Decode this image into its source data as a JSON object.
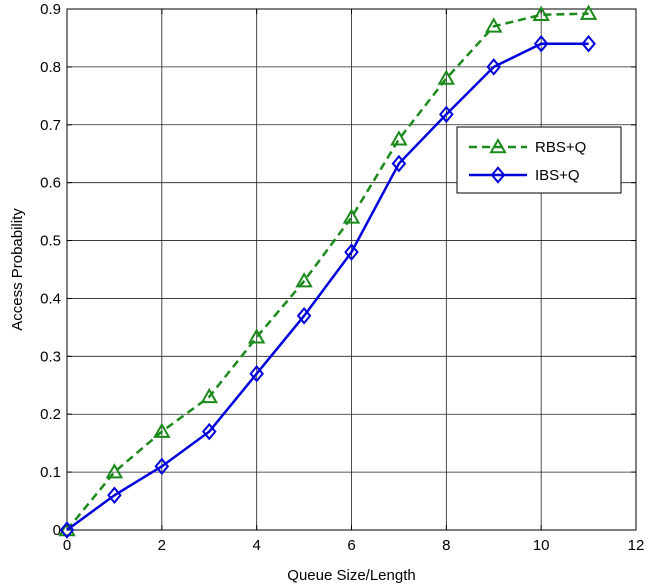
{
  "chart_data": {
    "type": "line",
    "title": "",
    "xlabel": "Queue Size/Length",
    "ylabel": "Access Probability",
    "xlim": [
      0,
      12
    ],
    "ylim": [
      0,
      0.9
    ],
    "xticks": [
      0,
      2,
      4,
      6,
      8,
      10,
      12
    ],
    "yticks": [
      0,
      0.1,
      0.2,
      0.3,
      0.4,
      0.5,
      0.6,
      0.7,
      0.8,
      0.9
    ],
    "xtick_labels": [
      "0",
      "2",
      "4",
      "6",
      "8",
      "10",
      "12"
    ],
    "ytick_labels": [
      "0",
      "0.1",
      "0.2",
      "0.3",
      "0.4",
      "0.5",
      "0.6",
      "0.7",
      "0.8",
      "0.9"
    ],
    "grid": true,
    "legend_position": "right",
    "series": [
      {
        "name": "RBS+Q",
        "color": "#1a8a1a",
        "line_style": "dashed",
        "marker": "triangle",
        "x": [
          0,
          1,
          2,
          3,
          4,
          5,
          6,
          7,
          8,
          9,
          10,
          11
        ],
        "y": [
          0,
          0.1,
          0.17,
          0.23,
          0.333,
          0.43,
          0.54,
          0.675,
          0.78,
          0.87,
          0.89,
          0.892
        ]
      },
      {
        "name": "IBS+Q",
        "color": "#0000dd",
        "line_style": "solid",
        "marker": "diamond",
        "x": [
          0,
          1,
          2,
          3,
          4,
          5,
          6,
          7,
          8,
          9,
          10,
          11
        ],
        "y": [
          0,
          0.06,
          0.11,
          0.17,
          0.27,
          0.37,
          0.48,
          0.633,
          0.718,
          0.8,
          0.84,
          0.84
        ]
      }
    ]
  }
}
